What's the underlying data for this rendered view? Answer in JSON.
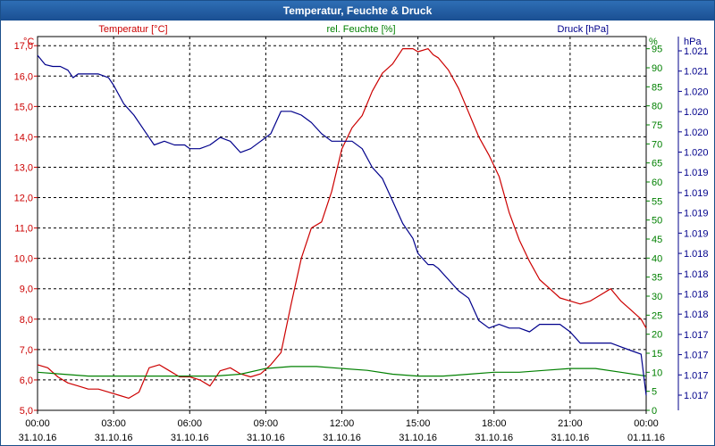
{
  "window": {
    "title": "Temperatur, Feuchte & Druck"
  },
  "colors": {
    "temperature": "#cc0000",
    "humidity": "#008000",
    "pressure": "#00008b",
    "grid": "#000000",
    "titlebar": "#1f5a9e"
  },
  "chart_data": {
    "type": "line",
    "title": "Temperatur, Feuchte & Druck",
    "grid": true,
    "x": {
      "ticks": [
        {
          "hour": 0,
          "time": "00:00",
          "date": "31.10.16"
        },
        {
          "hour": 3,
          "time": "03:00",
          "date": "31.10.16"
        },
        {
          "hour": 6,
          "time": "06:00",
          "date": "31.10.16"
        },
        {
          "hour": 9,
          "time": "09:00",
          "date": "31.10.16"
        },
        {
          "hour": 12,
          "time": "12:00",
          "date": "31.10.16"
        },
        {
          "hour": 15,
          "time": "15:00",
          "date": "31.10.16"
        },
        {
          "hour": 18,
          "time": "18:00",
          "date": "31.10.16"
        },
        {
          "hour": 21,
          "time": "21:00",
          "date": "31.10.16"
        },
        {
          "hour": 24,
          "time": "00:00",
          "date": "01.11.16"
        }
      ],
      "range_hours": [
        0,
        24
      ]
    },
    "axes": {
      "temperature": {
        "label": "Temperatur [°C]",
        "unit": "°C",
        "range": [
          5.0,
          17.3
        ],
        "ticks": [
          "5,0",
          "6,0",
          "7,0",
          "8,0",
          "9,0",
          "10,0",
          "11,0",
          "12,0",
          "13,0",
          "14,0",
          "15,0",
          "16,0",
          "17,0"
        ],
        "tick_values": [
          5,
          6,
          7,
          8,
          9,
          10,
          11,
          12,
          13,
          14,
          15,
          16,
          17
        ]
      },
      "humidity": {
        "label": "rel. Feuchte [%]",
        "unit": "%",
        "range": [
          0,
          98.2
        ],
        "ticks": [
          "0",
          "5",
          "10",
          "15",
          "20",
          "25",
          "30",
          "35",
          "40",
          "45",
          "50",
          "55",
          "60",
          "65",
          "70",
          "75",
          "80",
          "85",
          "90",
          "95"
        ],
        "tick_values": [
          0,
          5,
          10,
          15,
          20,
          25,
          30,
          35,
          40,
          45,
          50,
          55,
          60,
          65,
          70,
          75,
          80,
          85,
          90,
          95
        ]
      },
      "pressure": {
        "label": "Druck [hPa]",
        "unit": "hPa",
        "tick_labels": [
          "1.017",
          "1.017",
          "1.017",
          "1.017",
          "1.018",
          "1.018",
          "1.018",
          "1.018",
          "1.019",
          "1.019",
          "1.019",
          "1.019",
          "1.020",
          "1.020",
          "1.020",
          "1.020",
          "1.021",
          "1.021"
        ]
      }
    },
    "series": [
      {
        "name": "Temperatur [°C]",
        "axis": "temperature",
        "x": [
          0,
          0.4,
          0.8,
          1.2,
          1.6,
          2,
          2.4,
          2.8,
          3.2,
          3.6,
          4,
          4.4,
          4.8,
          5.2,
          5.6,
          6,
          6.4,
          6.8,
          7.2,
          7.6,
          8,
          8.4,
          8.8,
          9.2,
          9.6,
          10,
          10.4,
          10.8,
          11.2,
          11.6,
          12,
          12.4,
          12.8,
          13.2,
          13.6,
          14,
          14.4,
          14.8,
          15,
          15.4,
          15.6,
          15.8,
          16.2,
          16.6,
          17,
          17.4,
          17.8,
          18.2,
          18.6,
          19,
          19.4,
          19.8,
          20.2,
          20.6,
          21,
          21.4,
          21.8,
          22.2,
          22.6,
          23,
          23.4,
          23.8,
          24
        ],
        "values": [
          6.5,
          6.4,
          6.1,
          5.9,
          5.8,
          5.7,
          5.7,
          5.6,
          5.5,
          5.4,
          5.6,
          6.4,
          6.5,
          6.3,
          6.1,
          6.1,
          6.0,
          5.8,
          6.3,
          6.4,
          6.2,
          6.1,
          6.2,
          6.5,
          6.9,
          8.5,
          10.0,
          11.0,
          11.2,
          12.2,
          13.6,
          14.3,
          14.7,
          15.5,
          16.1,
          16.4,
          16.9,
          16.9,
          16.8,
          16.9,
          16.7,
          16.6,
          16.2,
          15.6,
          14.8,
          14.0,
          13.4,
          12.7,
          11.5,
          10.6,
          9.9,
          9.3,
          9.0,
          8.7,
          8.6,
          8.5,
          8.6,
          8.8,
          9.0,
          8.6,
          8.3,
          8.0,
          7.7
        ]
      },
      {
        "name": "rel. Feuchte [%]",
        "axis": "humidity",
        "x": [
          0,
          1,
          2,
          3,
          4,
          5,
          6,
          7,
          8,
          9,
          10,
          11,
          12,
          13,
          14,
          15,
          16,
          17,
          18,
          19,
          20,
          21,
          22,
          23,
          24
        ],
        "values": [
          10,
          9.5,
          9,
          9,
          9,
          9,
          9,
          9,
          9.5,
          11,
          11.5,
          11.5,
          11,
          10.5,
          9.5,
          9,
          9,
          9.5,
          10,
          10,
          10.5,
          11,
          11,
          10,
          9
        ]
      },
      {
        "name": "Druck [hPa]",
        "axis": "pressure",
        "note": "values are percent of the plotted pressure range (0 = bottom, 100 = top)",
        "x": [
          0,
          0.3,
          0.6,
          0.9,
          1.2,
          1.4,
          1.6,
          2,
          2.4,
          2.8,
          3.0,
          3.4,
          3.8,
          4.2,
          4.6,
          5,
          5.4,
          5.8,
          6,
          6.4,
          6.8,
          7.2,
          7.6,
          8,
          8.4,
          8.8,
          9.2,
          9.6,
          10,
          10.4,
          10.8,
          11.2,
          11.6,
          12,
          12.4,
          12.8,
          13.2,
          13.6,
          14,
          14.4,
          14.8,
          15,
          15.4,
          15.6,
          15.8,
          16.2,
          16.6,
          17,
          17.4,
          17.8,
          18.2,
          18.6,
          19,
          19.4,
          19.8,
          20.2,
          20.6,
          21,
          21.4,
          21.8,
          22.2,
          22.6,
          23,
          23.4,
          23.8,
          24
        ],
        "values": [
          95,
          92.5,
          92,
          92,
          91,
          89,
          90,
          90,
          90,
          89,
          87,
          82,
          79,
          75,
          71,
          72,
          71,
          71,
          70,
          70,
          71,
          73,
          72,
          69,
          70,
          72,
          74,
          80,
          80,
          79,
          77,
          74,
          72,
          72,
          72,
          70,
          65,
          62,
          56,
          50,
          46,
          42,
          39,
          39,
          38,
          35,
          32,
          30,
          24,
          22,
          23,
          22,
          22,
          21,
          23,
          23,
          23,
          21,
          18,
          18,
          18,
          18,
          17,
          16,
          15,
          4
        ]
      }
    ]
  }
}
